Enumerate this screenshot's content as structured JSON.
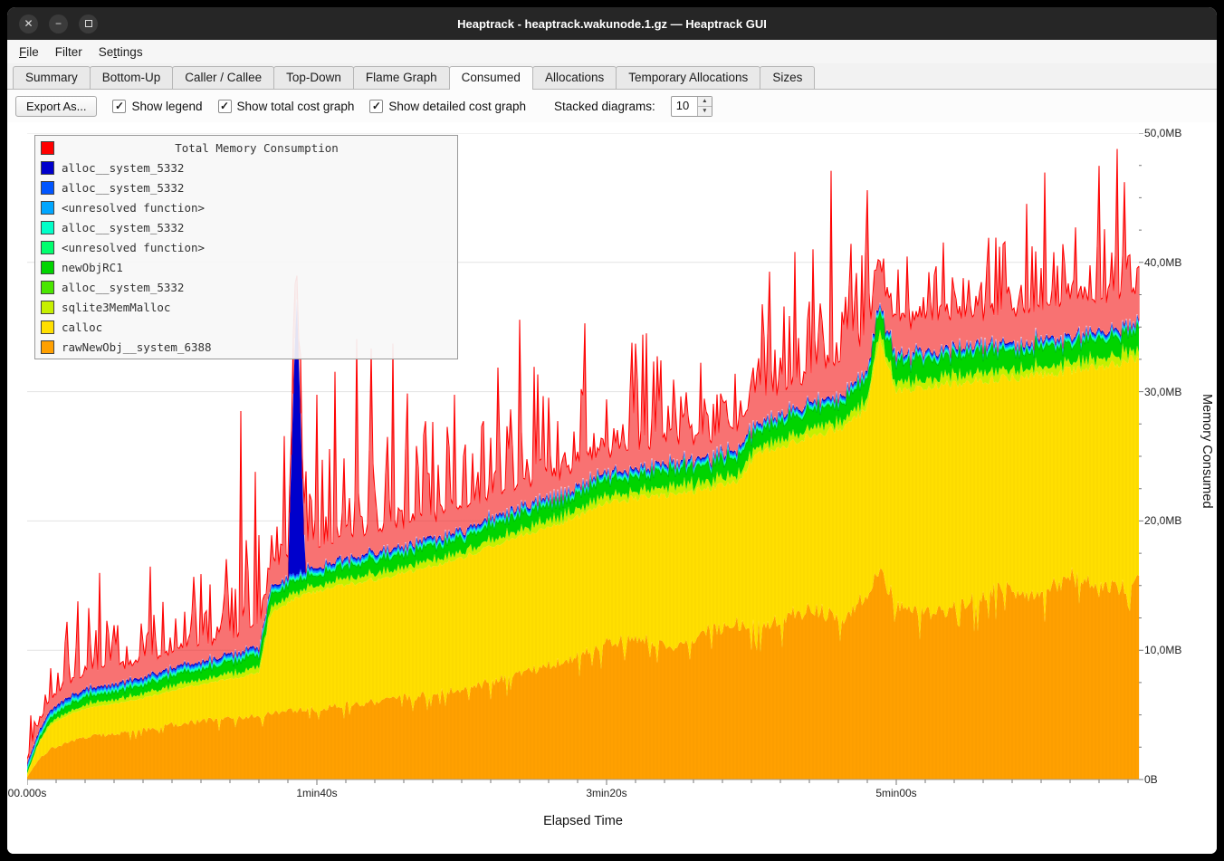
{
  "window": {
    "title": "Heaptrack - heaptrack.wakunode.1.gz — Heaptrack GUI"
  },
  "menubar": {
    "items": [
      {
        "label": "File",
        "underline": 0
      },
      {
        "label": "Filter",
        "underline": -1
      },
      {
        "label": "Settings",
        "underline": 2
      }
    ]
  },
  "tabs": {
    "items": [
      {
        "label": "Summary",
        "active": false
      },
      {
        "label": "Bottom-Up",
        "active": false
      },
      {
        "label": "Caller / Callee",
        "active": false
      },
      {
        "label": "Top-Down",
        "active": false
      },
      {
        "label": "Flame Graph",
        "active": false
      },
      {
        "label": "Consumed",
        "active": true
      },
      {
        "label": "Allocations",
        "active": false
      },
      {
        "label": "Temporary Allocations",
        "active": false
      },
      {
        "label": "Sizes",
        "active": false
      }
    ]
  },
  "toolbar": {
    "export_button": "Export As...",
    "checkboxes": [
      {
        "label": "Show legend",
        "checked": true
      },
      {
        "label": "Show total cost graph",
        "checked": true
      },
      {
        "label": "Show detailed cost graph",
        "checked": true
      }
    ],
    "stacked_label": "Stacked diagrams:",
    "stacked_value": "10"
  },
  "chart_data": {
    "type": "area",
    "title": "Total Memory Consumption",
    "xlabel": "Elapsed Time",
    "ylabel": "Memory Consumed",
    "ylim": [
      0,
      50
    ],
    "xlim_seconds": [
      0,
      384
    ],
    "grid": "horizontal",
    "legend_position": "top-left-overlay",
    "x_ticks": [
      {
        "t": 0,
        "label": "00.000s"
      },
      {
        "t": 100,
        "label": "1min40s"
      },
      {
        "t": 200,
        "label": "3min20s"
      },
      {
        "t": 300,
        "label": "5min00s"
      }
    ],
    "y_ticks": [
      {
        "v": 0,
        "label": "0B"
      },
      {
        "v": 10,
        "label": "10,0MB"
      },
      {
        "v": 20,
        "label": "20,0MB"
      },
      {
        "v": 30,
        "label": "30,0MB"
      },
      {
        "v": 40,
        "label": "40,0MB"
      },
      {
        "v": 50,
        "label": "50,0MB"
      }
    ],
    "legend": [
      {
        "label": "Total Memory Consumption",
        "color": "#ff0000",
        "title": true
      },
      {
        "label": "alloc__system_5332",
        "color": "#0000cc"
      },
      {
        "label": "alloc__system_5332",
        "color": "#0055ff"
      },
      {
        "label": "<unresolved function>",
        "color": "#00a6ff"
      },
      {
        "label": "alloc__system_5332",
        "color": "#00ffc8"
      },
      {
        "label": "<unresolved function>",
        "color": "#00ff6e"
      },
      {
        "label": "newObjRC1",
        "color": "#00d400"
      },
      {
        "label": "alloc__system_5332",
        "color": "#4ae600"
      },
      {
        "label": "sqlite3MemMalloc",
        "color": "#c6ef00"
      },
      {
        "label": "calloc",
        "color": "#ffdf00"
      },
      {
        "label": "rawNewObj__system_6388",
        "color": "#ffa000"
      }
    ],
    "strip_thickness": 0.12,
    "seed": 1337,
    "series": {
      "comment": "MB values at shared keypoint times t (seconds); layers are stacked",
      "t": [
        0,
        4,
        8,
        15,
        22,
        30,
        40,
        50,
        60,
        70,
        75,
        80,
        84,
        92,
        100,
        110,
        122,
        135,
        150,
        162,
        175,
        188,
        200,
        212,
        224,
        236,
        246,
        252,
        262,
        272,
        282,
        290,
        294,
        300,
        312,
        324,
        336,
        348,
        360,
        372,
        384
      ],
      "rawNewObj": [
        0.2,
        1.6,
        2.4,
        3.0,
        3.4,
        3.6,
        3.9,
        4.3,
        4.6,
        4.8,
        4.9,
        5.0,
        5.2,
        5.4,
        5.6,
        5.9,
        6.2,
        6.6,
        7.2,
        7.8,
        8.6,
        9.6,
        10.8,
        11.2,
        10.4,
        11.8,
        12.3,
        12.1,
        12.9,
        13.4,
        12.6,
        14.8,
        17.0,
        13.6,
        13.1,
        13.9,
        15.2,
        14.4,
        16.0,
        14.9,
        15.6
      ],
      "calloc_top": [
        0.4,
        2.8,
        4.2,
        5.1,
        5.6,
        5.9,
        6.3,
        6.9,
        7.4,
        7.8,
        8.0,
        8.3,
        12.8,
        14.0,
        14.6,
        15.1,
        15.6,
        16.3,
        17.2,
        18.3,
        19.2,
        20.2,
        21.4,
        21.9,
        22.1,
        22.6,
        23.2,
        25.4,
        25.9,
        26.8,
        27.3,
        28.8,
        34.0,
        30.2,
        30.5,
        30.8,
        31.1,
        31.3,
        31.7,
        32.1,
        32.7
      ],
      "red_base": [
        0.3,
        0.6,
        0.9,
        1.1,
        1.2,
        1.2,
        1.2,
        1.3,
        1.3,
        1.4,
        1.5,
        1.5,
        1.5,
        1.5,
        1.5,
        1.5,
        1.5,
        1.5,
        1.6,
        1.6,
        1.6,
        1.6,
        1.6,
        1.7,
        1.7,
        1.7,
        1.8,
        1.9,
        2.0,
        2.2,
        2.5,
        2.8,
        3.0,
        2.5,
        2.5,
        2.5,
        2.5,
        2.5,
        2.5,
        2.5,
        2.5
      ],
      "red_amp": [
        2,
        6,
        8,
        10,
        9,
        7,
        8,
        9,
        9,
        10,
        24,
        14,
        12,
        12,
        14,
        16,
        15,
        14,
        15,
        14,
        14,
        12,
        10,
        11,
        10,
        12,
        12,
        12,
        16,
        17,
        17,
        14,
        7,
        9,
        12,
        12,
        12,
        12,
        12,
        12,
        12
      ],
      "sq_t": [
        0,
        15,
        84,
        200,
        300,
        384
      ],
      "sq_v": [
        0.15,
        0.5,
        0.8,
        1.0,
        1.1,
        1.2
      ],
      "gr_t": [
        0,
        15,
        50,
        84,
        150,
        250,
        294,
        384
      ],
      "gr_v": [
        0.15,
        0.6,
        0.8,
        1.0,
        1.2,
        1.4,
        1.7,
        1.6
      ],
      "bs_t": [
        0,
        90,
        93,
        96,
        384
      ],
      "bs_v": [
        0,
        0,
        22,
        0,
        0
      ]
    }
  }
}
